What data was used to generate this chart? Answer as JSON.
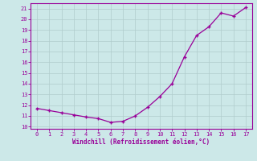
{
  "x": [
    0,
    1,
    2,
    3,
    4,
    5,
    6,
    7,
    8,
    9,
    10,
    11,
    12,
    13,
    14,
    15,
    16,
    17
  ],
  "y": [
    11.7,
    11.5,
    11.3,
    11.1,
    10.9,
    10.75,
    10.4,
    10.5,
    11.0,
    11.8,
    12.8,
    14.0,
    16.5,
    18.5,
    19.3,
    20.6,
    20.3,
    21.1
  ],
  "xlim": [
    -0.5,
    17.5
  ],
  "ylim": [
    9.8,
    21.5
  ],
  "xticks": [
    0,
    1,
    2,
    3,
    4,
    5,
    6,
    7,
    8,
    9,
    10,
    11,
    12,
    13,
    14,
    15,
    16,
    17
  ],
  "yticks": [
    10,
    11,
    12,
    13,
    14,
    15,
    16,
    17,
    18,
    19,
    20,
    21
  ],
  "xlabel": "Windchill (Refroidissement éolien,°C)",
  "line_color": "#990099",
  "marker": "+",
  "bg_color": "#cce8e8",
  "grid_color": "#b0cccc",
  "tick_color": "#990099",
  "label_color": "#990099"
}
